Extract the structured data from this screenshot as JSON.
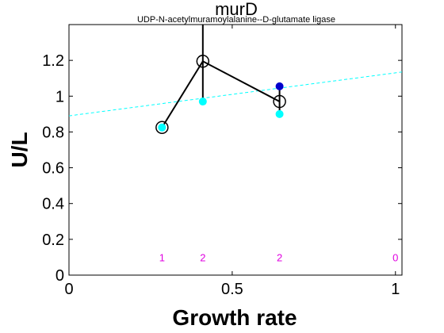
{
  "chart_data": {
    "type": "scatter",
    "title": "murD",
    "subtitle": "UDP-N-acetylmuramoylalanine--D-glutamate ligase",
    "xlabel": "Growth rate",
    "ylabel": "U/L",
    "xlim": [
      0,
      1.02
    ],
    "ylim": [
      0,
      1.4
    ],
    "xticks": [
      0,
      0.5,
      1
    ],
    "yticks": [
      0,
      0.2,
      0.4,
      0.6,
      0.8,
      1,
      1.2
    ],
    "xtick_labels": [
      "0",
      "0.5",
      "1"
    ],
    "ytick_labels": [
      "0",
      "0.2",
      "0.4",
      "0.6",
      "0.8",
      "1",
      "1.2"
    ],
    "grid": false,
    "colors": {
      "mean_line": "#000000",
      "fit_line": "#00ffff",
      "cyan_points": "#00ffff",
      "blue_points": "#0000cc",
      "counts": "#e000e0"
    },
    "mean_series": {
      "x": [
        0.285,
        0.41,
        0.645
      ],
      "y": [
        0.825,
        1.195,
        0.97
      ]
    },
    "error_bars": [
      {
        "x": 0.41,
        "low": 0.97,
        "high": 1.42
      },
      {
        "x": 0.645,
        "low": 0.9,
        "high": 1.045
      }
    ],
    "cyan_points": {
      "x": [
        0.285,
        0.41,
        0.645
      ],
      "y": [
        0.825,
        0.97,
        0.9
      ]
    },
    "blue_points": {
      "x": [
        0.645
      ],
      "y": [
        1.055
      ]
    },
    "fit_line": {
      "x": [
        0,
        1.02
      ],
      "y": [
        0.89,
        1.135
      ]
    },
    "counts": [
      {
        "x": 0.285,
        "label": "1"
      },
      {
        "x": 0.41,
        "label": "2"
      },
      {
        "x": 0.645,
        "label": "2"
      },
      {
        "x": 1.0,
        "label": "0"
      }
    ]
  }
}
